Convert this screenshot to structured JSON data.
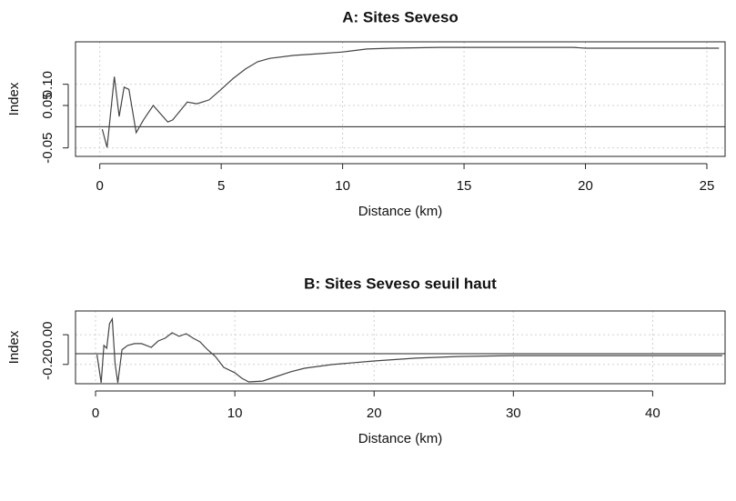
{
  "chart_data": [
    {
      "type": "line",
      "title": "A: Sites Seveso",
      "xlabel": "Distance (km)",
      "ylabel": "Index",
      "xlim": [
        -1.0,
        25.75
      ],
      "ylim": [
        -0.07,
        0.2
      ],
      "xticks": [
        0,
        5,
        10,
        15,
        20,
        25
      ],
      "yticks": [
        -0.05,
        0.05,
        {
          "value": 0.1,
          "label": "0.10"
        }
      ],
      "hline": 0,
      "grid": true,
      "x": [
        0.1,
        0.3,
        0.6,
        0.8,
        1.0,
        1.2,
        1.5,
        1.8,
        2.2,
        2.8,
        3.0,
        3.3,
        3.6,
        4.0,
        4.5,
        5.0,
        5.5,
        6.0,
        6.5,
        7,
        8,
        9,
        10,
        11,
        12,
        14,
        19.5,
        20,
        25.5
      ],
      "series": [
        {
          "color": "#444444",
          "values": [
            -0.006,
            -0.049,
            0.118,
            0.024,
            0.093,
            0.088,
            -0.014,
            0.016,
            0.05,
            0.011,
            0.016,
            0.037,
            0.058,
            0.054,
            0.063,
            0.088,
            0.114,
            0.136,
            0.153,
            0.161,
            0.168,
            0.172,
            0.176,
            0.183,
            0.185,
            0.187,
            0.187,
            0.185,
            0.185
          ]
        }
      ]
    },
    {
      "type": "line",
      "title": "B: Sites Seveso seuil haut",
      "xlabel": "Distance (km)",
      "ylabel": "Index",
      "xlim": [
        -1.44,
        45.2
      ],
      "ylim": [
        -0.33,
        0.16
      ],
      "xticks": [
        0,
        10,
        20,
        30,
        40
      ],
      "yticks": [
        {
          "value": -0.2,
          "label": "-0.20"
        },
        {
          "value": 0,
          "label": "0.00"
        }
      ],
      "hline": -0.128,
      "grid": true,
      "x": [
        0.1,
        0.4,
        0.6,
        0.8,
        1.0,
        1.2,
        1.4,
        1.6,
        1.9,
        2.3,
        2.8,
        3.3,
        4,
        4.5,
        5,
        5.5,
        6,
        6.5,
        7,
        7.5,
        8,
        8.6,
        9.2,
        10,
        10.5,
        11,
        12,
        13,
        14,
        15,
        17,
        20,
        23,
        26,
        30,
        45
      ],
      "series": [
        {
          "color": "#444444",
          "values": [
            -0.134,
            -0.324,
            -0.072,
            -0.091,
            0.075,
            0.106,
            -0.195,
            -0.324,
            -0.101,
            -0.072,
            -0.06,
            -0.06,
            -0.085,
            -0.042,
            -0.023,
            0.013,
            -0.011,
            0.007,
            -0.023,
            -0.048,
            -0.097,
            -0.146,
            -0.22,
            -0.256,
            -0.293,
            -0.318,
            -0.312,
            -0.281,
            -0.25,
            -0.226,
            -0.201,
            -0.177,
            -0.158,
            -0.147,
            -0.141,
            -0.141
          ]
        }
      ]
    }
  ]
}
